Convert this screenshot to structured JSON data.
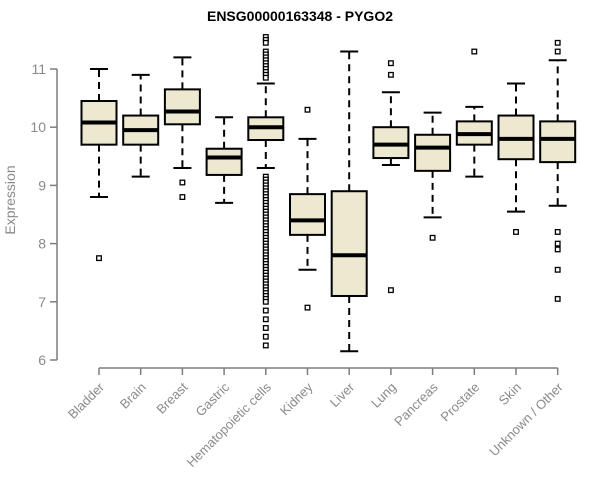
{
  "chart_data": {
    "type": "boxplot",
    "title": "ENSG00000163348 - PYGO2",
    "xlabel": "",
    "ylabel": "Expression",
    "ylim": [
      5.9,
      11.6
    ],
    "yticks": [
      6,
      7,
      8,
      9,
      10,
      11
    ],
    "grid": false,
    "legend": "none",
    "categories": [
      "Bladder",
      "Brain",
      "Breast",
      "Gastric",
      "Hematopoietic cells",
      "Kidney",
      "Liver",
      "Lung",
      "Pancreas",
      "Prostate",
      "Skin",
      "Unknown / Other"
    ],
    "boxes": [
      {
        "category": "Bladder",
        "whisker_low": 8.8,
        "q1": 9.7,
        "median": 10.08,
        "q3": 10.45,
        "whisker_high": 11.0,
        "outliers": [
          7.75
        ]
      },
      {
        "category": "Brain",
        "whisker_low": 9.15,
        "q1": 9.7,
        "median": 9.95,
        "q3": 10.2,
        "whisker_high": 10.9,
        "outliers": []
      },
      {
        "category": "Breast",
        "whisker_low": 9.3,
        "q1": 10.05,
        "median": 10.27,
        "q3": 10.65,
        "whisker_high": 11.2,
        "outliers": [
          9.05,
          8.8
        ]
      },
      {
        "category": "Gastric",
        "whisker_low": 8.7,
        "q1": 9.18,
        "median": 9.48,
        "q3": 9.63,
        "whisker_high": 10.17,
        "outliers": []
      },
      {
        "category": "Hematopoietic cells",
        "whisker_low": 9.3,
        "q1": 9.78,
        "median": 10.0,
        "q3": 10.17,
        "whisker_high": 10.75,
        "outliers": [
          11.55,
          11.5,
          11.45,
          11.3,
          11.25,
          11.2,
          11.15,
          11.1,
          11.05,
          11.0,
          10.95,
          10.9,
          10.85,
          9.15,
          9.1,
          9.05,
          9.0,
          8.95,
          8.9,
          8.85,
          8.8,
          8.75,
          8.7,
          8.65,
          8.6,
          8.55,
          8.5,
          8.45,
          8.4,
          8.35,
          8.3,
          8.25,
          8.2,
          8.15,
          8.1,
          8.05,
          8.0,
          7.95,
          7.9,
          7.85,
          7.8,
          7.75,
          7.7,
          7.65,
          7.6,
          7.55,
          7.5,
          7.45,
          7.4,
          7.35,
          7.3,
          7.25,
          7.2,
          7.15,
          7.1,
          7.05,
          7.0,
          6.85,
          6.7,
          6.55,
          6.4,
          6.25
        ]
      },
      {
        "category": "Kidney",
        "whisker_low": 7.55,
        "q1": 8.15,
        "median": 8.4,
        "q3": 8.85,
        "whisker_high": 9.8,
        "outliers": [
          10.3,
          6.9
        ]
      },
      {
        "category": "Liver",
        "whisker_low": 6.15,
        "q1": 7.1,
        "median": 7.8,
        "q3": 8.9,
        "whisker_high": 11.3,
        "outliers": []
      },
      {
        "category": "Lung",
        "whisker_low": 9.35,
        "q1": 9.47,
        "median": 9.7,
        "q3": 10.0,
        "whisker_high": 10.6,
        "outliers": [
          11.1,
          10.9,
          7.2
        ]
      },
      {
        "category": "Pancreas",
        "whisker_low": 8.45,
        "q1": 9.25,
        "median": 9.65,
        "q3": 9.87,
        "whisker_high": 10.25,
        "outliers": [
          8.1
        ]
      },
      {
        "category": "Prostate",
        "whisker_low": 9.15,
        "q1": 9.7,
        "median": 9.88,
        "q3": 10.1,
        "whisker_high": 10.35,
        "outliers": [
          11.3
        ]
      },
      {
        "category": "Skin",
        "whisker_low": 8.55,
        "q1": 9.45,
        "median": 9.8,
        "q3": 10.2,
        "whisker_high": 10.75,
        "outliers": [
          8.2
        ]
      },
      {
        "category": "Unknown / Other",
        "whisker_low": 8.65,
        "q1": 9.4,
        "median": 9.8,
        "q3": 10.1,
        "whisker_high": 11.15,
        "outliers": [
          11.45,
          11.3,
          8.2,
          8.0,
          7.9,
          7.55,
          7.05
        ]
      }
    ],
    "colors": {
      "box_fill": "#ede8d0",
      "box_border": "#000000",
      "median": "#000000",
      "whisker": "#000000",
      "outlier_stroke": "#000000",
      "axis": "#7d7d7d",
      "axis_text": "#8a8a8a",
      "title_text": "#000000",
      "background": "#ffffff"
    }
  }
}
